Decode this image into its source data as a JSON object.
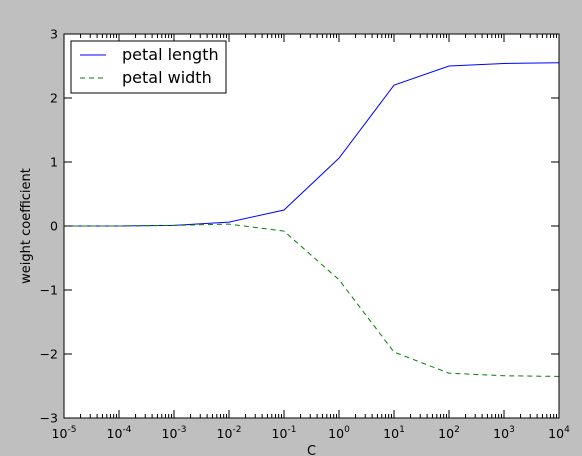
{
  "chart_data": {
    "type": "line",
    "xscale": "log",
    "x": [
      1e-05,
      0.0001,
      0.001,
      0.01,
      0.1,
      1,
      10,
      100,
      1000,
      10000
    ],
    "xlim": [
      1e-05,
      10000
    ],
    "ylim": [
      -3,
      3
    ],
    "xlabel": "C",
    "ylabel": "weight coefficient",
    "xticks": [
      {
        "base": "10",
        "exp": "-5"
      },
      {
        "base": "10",
        "exp": "-4"
      },
      {
        "base": "10",
        "exp": "-3"
      },
      {
        "base": "10",
        "exp": "-2"
      },
      {
        "base": "10",
        "exp": "-1"
      },
      {
        "base": "10",
        "exp": "0"
      },
      {
        "base": "10",
        "exp": "1"
      },
      {
        "base": "10",
        "exp": "2"
      },
      {
        "base": "10",
        "exp": "3"
      },
      {
        "base": "10",
        "exp": "4"
      }
    ],
    "yticks": [
      {
        "value": 3,
        "label": "3"
      },
      {
        "value": 2,
        "label": "2"
      },
      {
        "value": 1,
        "label": "1"
      },
      {
        "value": 0,
        "label": "0"
      },
      {
        "value": -1,
        "label": "−1"
      },
      {
        "value": -2,
        "label": "−2"
      },
      {
        "value": -3,
        "label": "−3"
      }
    ],
    "grid": false,
    "legend": "top-left",
    "series": [
      {
        "name": "petal length",
        "color": "#0000ff",
        "dash": "solid",
        "values": [
          0.0,
          0.0,
          0.01,
          0.06,
          0.25,
          1.06,
          2.2,
          2.5,
          2.54,
          2.55
        ]
      },
      {
        "name": "petal width",
        "color": "#008000",
        "dash": "dashed",
        "values": [
          0.0,
          0.0,
          0.01,
          0.03,
          -0.08,
          -0.84,
          -1.97,
          -2.3,
          -2.34,
          -2.35
        ]
      }
    ]
  }
}
